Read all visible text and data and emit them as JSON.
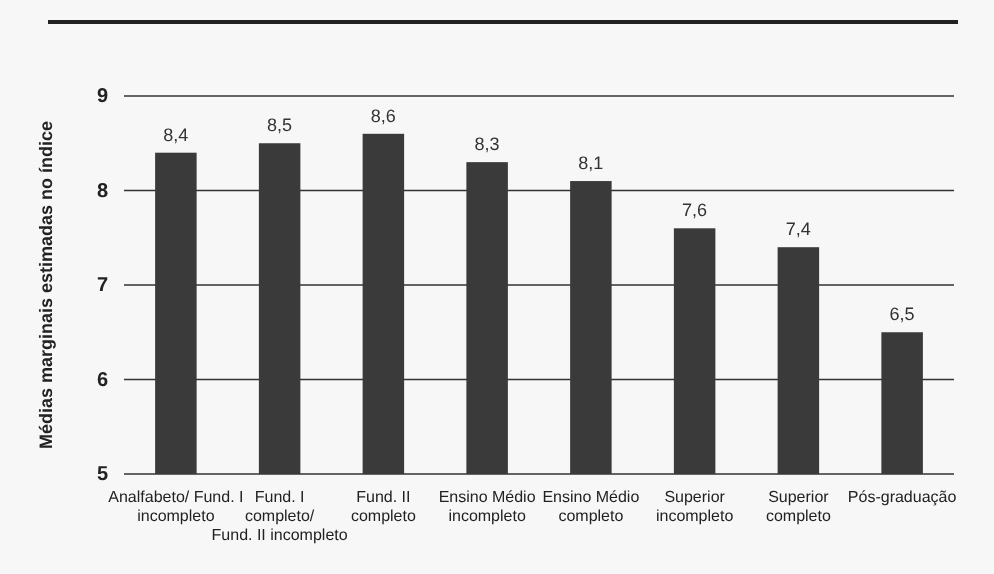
{
  "chart_data": {
    "type": "bar",
    "ylabel": "Médias marginais estimadas no índice",
    "categories": [
      "Analfabeto/ Fund. I\nincompleto",
      "Fund. I\ncompleto/\nFund. II incompleto",
      "Fund. II\ncompleto",
      "Ensino Médio\nincompleto",
      "Ensino Médio\ncompleto",
      "Superior\nincompleto",
      "Superior\ncompleto",
      "Pós-graduação"
    ],
    "values": [
      8.4,
      8.5,
      8.6,
      8.3,
      8.1,
      7.6,
      7.4,
      6.5
    ],
    "value_labels": [
      "8,4",
      "8,5",
      "8,6",
      "8,3",
      "8,1",
      "7,6",
      "7,4",
      "6,5"
    ],
    "color": "#3a3a3a",
    "ylim": [
      5,
      9
    ],
    "yticks": [
      5,
      6,
      7,
      8,
      9
    ],
    "grid": "y"
  }
}
